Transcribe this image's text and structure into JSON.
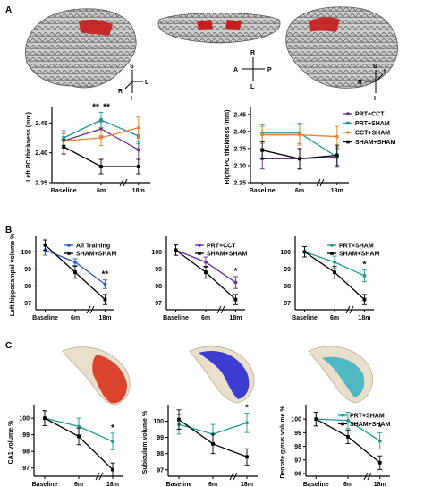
{
  "panels": {
    "a": "A",
    "b": "B",
    "c": "C"
  },
  "orientation": {
    "left": {
      "up": "S",
      "down": "I",
      "right": "L",
      "diag": "R"
    },
    "middle": {
      "up": "R",
      "down": "L",
      "left": "A",
      "right": "P"
    },
    "right": {
      "up": "S",
      "down": "I",
      "left": "R",
      "diag": "L"
    }
  },
  "colors": {
    "prt_cct": "#6a2c91",
    "prt_sham": "#1a9a8f",
    "cct_sham": "#e8852e",
    "sham_sham": "#000000",
    "all_training": "#2659c9",
    "region_ca1": "#d8321c",
    "region_subiculum": "#2a2ad0",
    "region_dentate": "#33b3c2",
    "brain_roi": "#c81e1e"
  },
  "chart_data": [
    {
      "id": "a1",
      "type": "line",
      "ylabel": "Left PC thickness (mm)",
      "categories": [
        "Baseline",
        "6m",
        "18m"
      ],
      "ylim": [
        2.35,
        2.47
      ],
      "yticks": [
        "2.35",
        "2.40",
        "2.45"
      ],
      "annotations": [
        {
          "text": "**",
          "color": "prt_sham",
          "at": 1
        },
        {
          "text": "**",
          "color": "prt_cct",
          "at": 1
        }
      ],
      "series": [
        {
          "name": "PRT+CCT",
          "color": "prt_cct",
          "values": [
            2.42,
            2.44,
            2.405
          ],
          "err": [
            0.012,
            0.012,
            0.014
          ]
        },
        {
          "name": "PRT+SHAM",
          "color": "prt_sham",
          "values": [
            2.425,
            2.455,
            2.428
          ],
          "err": [
            0.012,
            0.013,
            0.013
          ]
        },
        {
          "name": "CCT+SHAM",
          "color": "cct_sham",
          "values": [
            2.42,
            2.425,
            2.442
          ],
          "err": [
            0.012,
            0.013,
            0.018
          ]
        },
        {
          "name": "SHAM+SHAM",
          "color": "sham_sham",
          "values": [
            2.41,
            2.377,
            2.377
          ],
          "err": [
            0.012,
            0.012,
            0.012
          ]
        }
      ]
    },
    {
      "id": "a2",
      "type": "line",
      "ylabel": "Right PC thickness (mm)",
      "categories": [
        "Baseline",
        "6m",
        "18m"
      ],
      "ylim": [
        2.25,
        2.46
      ],
      "yticks": [
        "2.25",
        "2.30",
        "2.35",
        "2.40",
        "2.45"
      ],
      "series": [
        {
          "name": "PRT+CCT",
          "color": "prt_cct",
          "values": [
            2.32,
            2.32,
            2.325
          ],
          "err": [
            0.03,
            0.03,
            0.03
          ]
        },
        {
          "name": "PRT+SHAM",
          "color": "prt_sham",
          "values": [
            2.395,
            2.395,
            2.325
          ],
          "err": [
            0.025,
            0.03,
            0.025
          ]
        },
        {
          "name": "CCT+SHAM",
          "color": "cct_sham",
          "values": [
            2.39,
            2.39,
            2.385
          ],
          "err": [
            0.025,
            0.03,
            0.03
          ]
        },
        {
          "name": "SHAM+SHAM",
          "color": "sham_sham",
          "values": [
            2.345,
            2.32,
            2.33
          ],
          "err": [
            0.025,
            0.03,
            0.03
          ]
        }
      ]
    },
    {
      "id": "b1",
      "type": "line",
      "ylabel": "Left hippocampal volume %",
      "categories": [
        "Baseline",
        "6m",
        "18m"
      ],
      "ylim": [
        96.6,
        100.7
      ],
      "yticks": [
        "97",
        "98",
        "99",
        "100"
      ],
      "annotations": [
        {
          "text": "**",
          "color": "all_training",
          "at": 2
        }
      ],
      "series": [
        {
          "name": "All Training",
          "color": "all_training",
          "values": [
            100.1,
            99.4,
            98.1
          ],
          "err": [
            0.3,
            0.2,
            0.25
          ]
        },
        {
          "name": "SHAM+SHAM",
          "color": "sham_sham",
          "values": [
            100.4,
            98.8,
            97.2
          ],
          "err": [
            0.3,
            0.35,
            0.3
          ]
        }
      ]
    },
    {
      "id": "b2",
      "type": "line",
      "ylabel": "",
      "categories": [
        "Baseline",
        "6m",
        "18m"
      ],
      "ylim": [
        96.6,
        100.7
      ],
      "yticks": [
        "97",
        "98",
        "99",
        "100"
      ],
      "annotations": [
        {
          "text": "*",
          "color": "prt_cct",
          "at": 2
        }
      ],
      "series": [
        {
          "name": "PRT+CCT",
          "color": "prt_cct",
          "values": [
            100.1,
            99.4,
            98.2
          ],
          "err": [
            0.3,
            0.3,
            0.35
          ]
        },
        {
          "name": "SHAM+SHAM",
          "color": "sham_sham",
          "values": [
            100.1,
            98.8,
            97.2
          ],
          "err": [
            0.3,
            0.35,
            0.3
          ]
        }
      ]
    },
    {
      "id": "b3",
      "type": "line",
      "ylabel": "",
      "categories": [
        "Baseline",
        "6m",
        "18m"
      ],
      "ylim": [
        96.6,
        100.7
      ],
      "yticks": [
        "97",
        "98",
        "99",
        "100"
      ],
      "annotations": [
        {
          "text": "*",
          "color": "prt_sham",
          "at": 2
        }
      ],
      "series": [
        {
          "name": "PRT+SHAM",
          "color": "prt_sham",
          "values": [
            100.0,
            99.4,
            98.6
          ],
          "err": [
            0.3,
            0.35,
            0.35
          ]
        },
        {
          "name": "SHAM+SHAM",
          "color": "sham_sham",
          "values": [
            100.0,
            98.8,
            97.2
          ],
          "err": [
            0.3,
            0.35,
            0.3
          ]
        }
      ]
    },
    {
      "id": "c1",
      "type": "line",
      "ylabel": "CA1 volume %",
      "categories": [
        "Baseline",
        "6m",
        "18m"
      ],
      "ylim": [
        96.5,
        100.6
      ],
      "yticks": [
        "97",
        "98",
        "99",
        "100"
      ],
      "annotations": [
        {
          "text": "*",
          "color": "prt_sham",
          "at": 2
        }
      ],
      "series": [
        {
          "name": "PRT+SHAM",
          "color": "prt_sham",
          "values": [
            100.0,
            99.5,
            98.6
          ],
          "err": [
            0.45,
            0.5,
            0.5
          ]
        },
        {
          "name": "SHAM+SHAM",
          "color": "sham_sham",
          "values": [
            100.0,
            98.9,
            96.9
          ],
          "err": [
            0.45,
            0.5,
            0.4
          ]
        }
      ]
    },
    {
      "id": "c2",
      "type": "line",
      "ylabel": "Subiculum volume %",
      "categories": [
        "Baseline",
        "6m",
        "18m"
      ],
      "ylim": [
        96.6,
        100.8
      ],
      "yticks": [
        "97",
        "98",
        "99",
        "100"
      ],
      "annotations": [
        {
          "text": "*",
          "color": "prt_sham",
          "at": 2
        }
      ],
      "series": [
        {
          "name": "PRT+SHAM",
          "color": "prt_sham",
          "values": [
            99.8,
            99.2,
            99.9
          ],
          "err": [
            0.6,
            0.6,
            0.6
          ]
        },
        {
          "name": "SHAM+SHAM",
          "color": "sham_sham",
          "values": [
            100.1,
            98.6,
            97.8
          ],
          "err": [
            0.6,
            0.6,
            0.5
          ]
        }
      ]
    },
    {
      "id": "c3",
      "type": "line",
      "ylabel": "Dentate gyrus volume %",
      "categories": [
        "Baseline",
        "6m",
        "18m"
      ],
      "ylim": [
        95.8,
        100.8
      ],
      "yticks": [
        "96",
        "97",
        "98",
        "99",
        "100"
      ],
      "annotations": [
        {
          "text": "*",
          "color": "prt_sham",
          "at": 2
        }
      ],
      "series": [
        {
          "name": "PRT+SHAM",
          "color": "prt_sham",
          "values": [
            100.0,
            99.9,
            98.4
          ],
          "err": [
            0.5,
            0.6,
            0.6
          ]
        },
        {
          "name": "SHAM+SHAM",
          "color": "sham_sham",
          "values": [
            100.0,
            98.7,
            96.8
          ],
          "err": [
            0.5,
            0.5,
            0.5
          ]
        }
      ]
    }
  ]
}
